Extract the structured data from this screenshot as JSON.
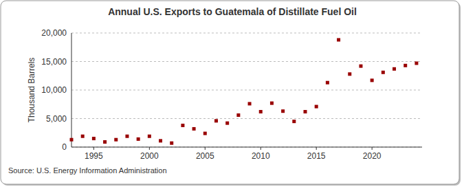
{
  "chart_data": {
    "type": "scatter",
    "title": "Annual U.S. Exports to Guatemala of Distillate Fuel Oil",
    "y_label": "Thousand Barrels",
    "source": "Source: U.S. Energy Information Administration",
    "x": [
      1993,
      1994,
      1995,
      1996,
      1997,
      1998,
      1999,
      2000,
      2001,
      2002,
      2003,
      2004,
      2005,
      2006,
      2007,
      2008,
      2009,
      2010,
      2011,
      2012,
      2013,
      2014,
      2015,
      2016,
      2017,
      2018,
      2019,
      2020,
      2021,
      2022,
      2023,
      2024
    ],
    "values": [
      1300,
      1900,
      1500,
      900,
      1300,
      1900,
      1400,
      1900,
      1100,
      700,
      3800,
      3200,
      2400,
      4600,
      4200,
      5600,
      7600,
      6200,
      7700,
      6300,
      4500,
      6200,
      7100,
      11300,
      18800,
      12800,
      14200,
      11700,
      13100,
      13700,
      14300,
      14700
    ],
    "color": "#990000",
    "marker": "square",
    "xlim": [
      1993,
      2024.5
    ],
    "xticks": [
      1995,
      2000,
      2005,
      2010,
      2015,
      2020
    ],
    "ylim": [
      0,
      20000
    ],
    "yticks": [
      0,
      {
        "value": 5000,
        "label": "5,000"
      },
      {
        "value": 10000,
        "label": "10,000"
      },
      {
        "value": 15000,
        "label": "15,000"
      },
      {
        "value": 20000,
        "label": "20,000"
      }
    ],
    "grid": true
  }
}
